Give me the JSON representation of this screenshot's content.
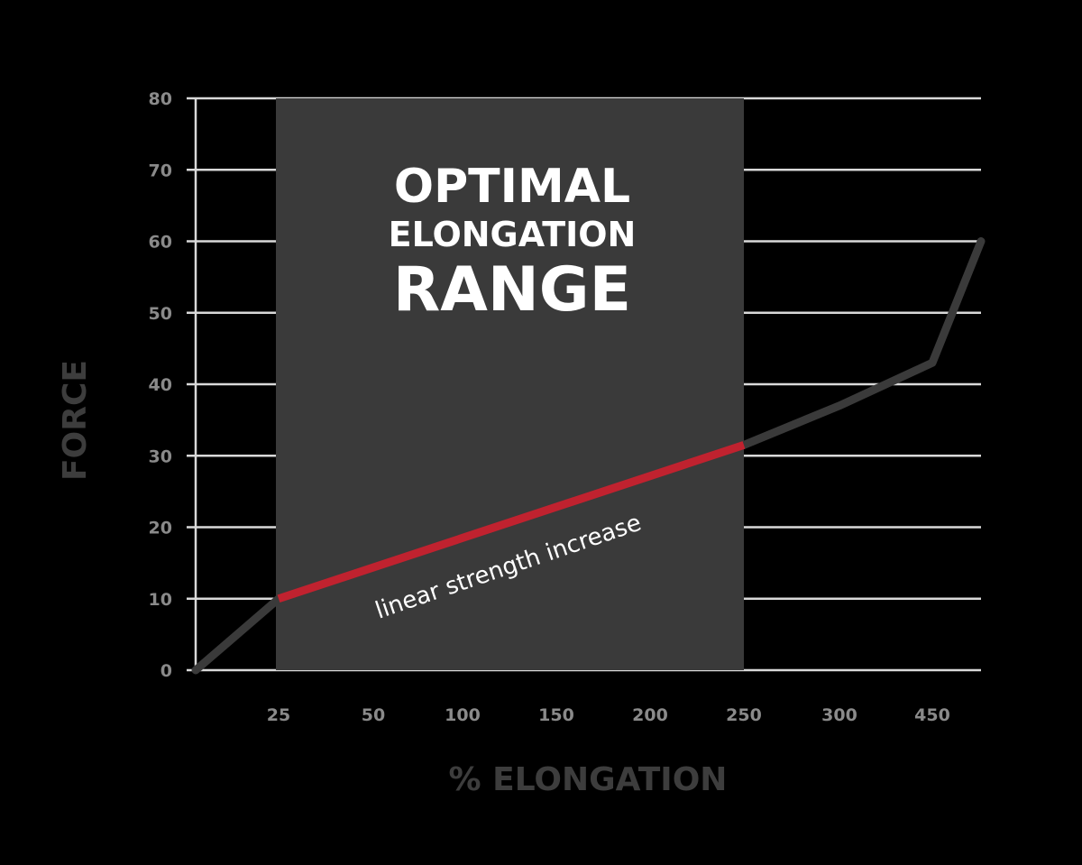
{
  "chart_data": {
    "type": "line",
    "xlabel": "% ELONGATION",
    "ylabel": "FORCE",
    "ylim": [
      0,
      80
    ],
    "yticks": [
      0,
      10,
      20,
      30,
      40,
      50,
      60,
      70,
      80
    ],
    "xticks": [
      "25",
      "50",
      "100",
      "150",
      "200",
      "250",
      "300",
      "450"
    ],
    "grid": "horizontal",
    "band": {
      "title_lines": [
        "OPTIMAL",
        "ELONGATION",
        "RANGE"
      ],
      "from_tick": "25",
      "to_tick": "250",
      "color": "#3a3a3a"
    },
    "series": [
      {
        "x": [
          "0",
          "25",
          "250",
          "300",
          "450",
          "end"
        ],
        "values": [
          0,
          10,
          31.5,
          37,
          43,
          60
        ],
        "color": "#3a3a3a"
      }
    ],
    "highlight": {
      "from_tick": "25",
      "to_tick": "250",
      "label": "linear strength increase",
      "color": "#c0222f"
    },
    "colors": {
      "background": "#000000",
      "gridline": "#d9d9d9",
      "tick_text": "#8a8a8a",
      "axis_title": "#3d3d3d",
      "band": "#3a3a3a",
      "line": "#3a3a3a",
      "highlight": "#c0222f"
    }
  }
}
